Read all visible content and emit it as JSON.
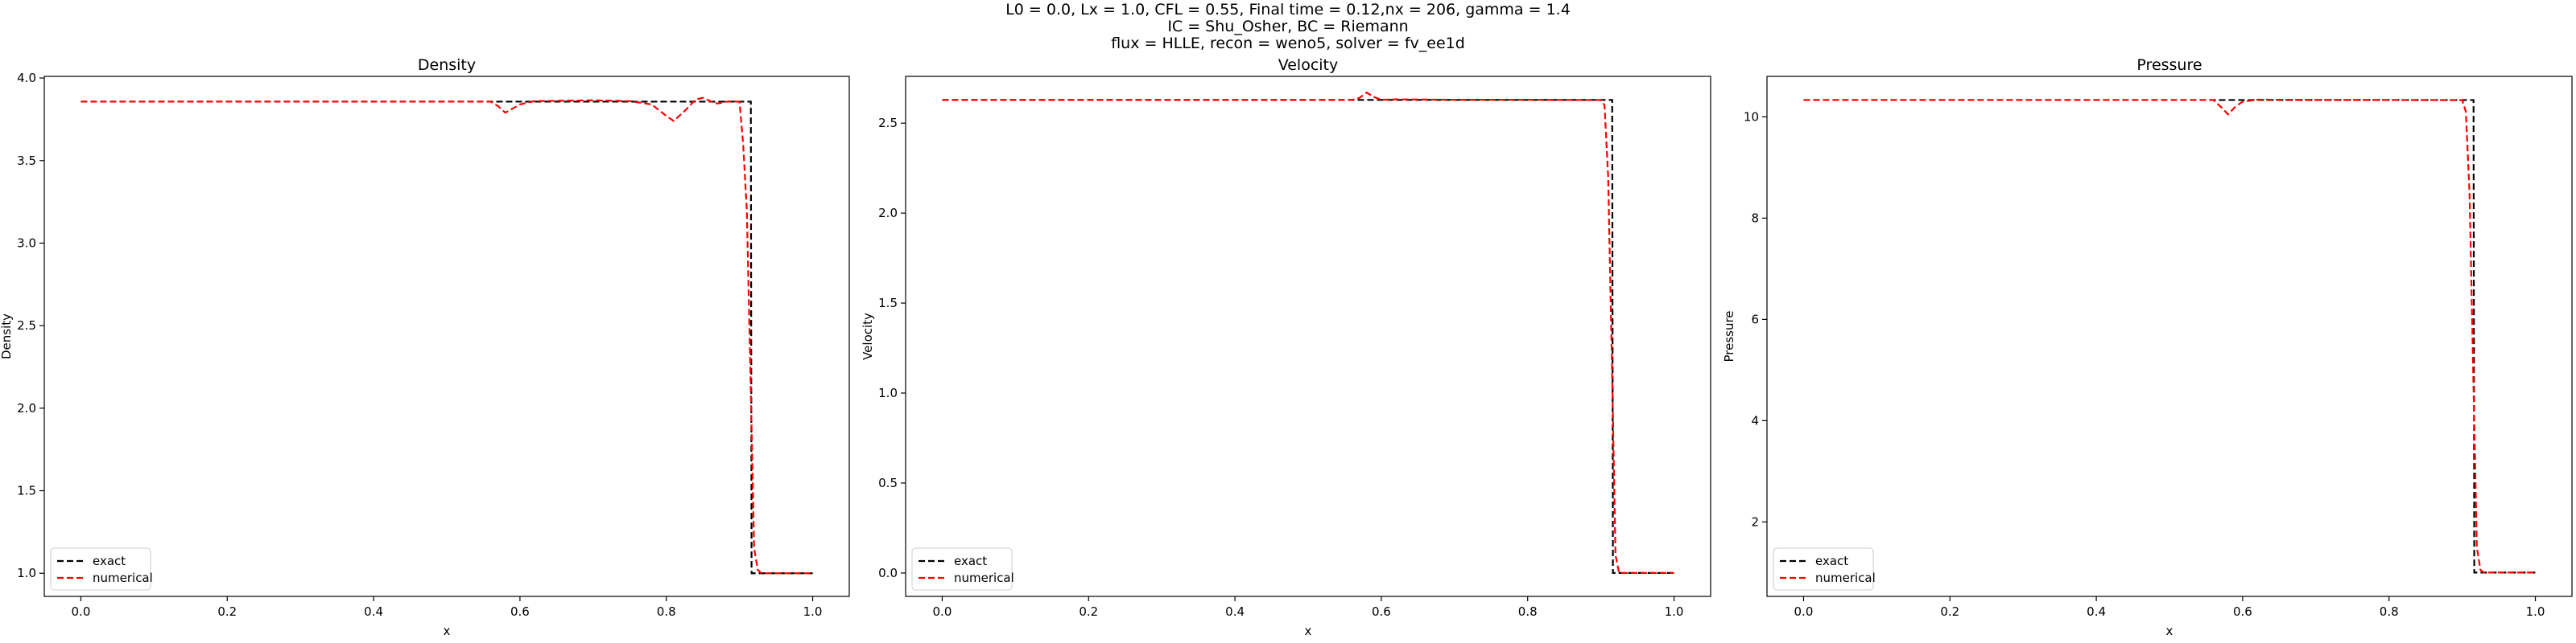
{
  "suptitle": [
    "L0 = 0.0, Lx = 1.0, CFL = 0.55, Final time = 0.12,nx = 206, gamma = 1.4",
    "IC = Shu_Osher, BC = Riemann",
    "flux = HLLE, recon = weno5, solver = fv_ee1d"
  ],
  "colors": {
    "exact": "#000000",
    "numerical": "#ff0000",
    "axes": "#000000",
    "legend_border": "#cccccc"
  },
  "chart_data": [
    {
      "type": "line",
      "title": "Density",
      "xlabel": "x",
      "ylabel": "Density",
      "xlim": [
        -0.05,
        1.05
      ],
      "ylim": [
        0.86,
        4.01
      ],
      "xticks": [
        0.0,
        0.2,
        0.4,
        0.6,
        0.8,
        1.0
      ],
      "xtick_labels": [
        "0.0",
        "0.2",
        "0.4",
        "0.6",
        "0.8",
        "1.0"
      ],
      "yticks": [
        1.0,
        1.5,
        2.0,
        2.5,
        3.0,
        3.5,
        4.0
      ],
      "ytick_labels": [
        "1.0",
        "1.5",
        "2.0",
        "2.5",
        "3.0",
        "3.5",
        "4.0"
      ],
      "grid": false,
      "legend": "lower-left",
      "series": [
        {
          "name": "exact",
          "style": "dashed",
          "color": "#000000",
          "x": [
            0.0,
            0.57,
            0.575,
            0.6,
            0.7,
            0.8,
            0.9,
            0.9155,
            0.9165,
            0.925,
            1.0
          ],
          "y": [
            3.857,
            3.857,
            3.857,
            3.857,
            3.857,
            3.857,
            3.857,
            3.857,
            1.0,
            1.0,
            1.0
          ]
        },
        {
          "name": "numerical",
          "style": "dashed",
          "color": "#ff0000",
          "x": [
            0.0,
            0.56,
            0.57,
            0.58,
            0.6,
            0.62,
            0.65,
            0.7,
            0.75,
            0.78,
            0.8,
            0.81,
            0.825,
            0.84,
            0.85,
            0.86,
            0.87,
            0.88,
            0.89,
            0.9,
            0.905,
            0.91,
            0.915,
            0.92,
            0.925,
            0.93,
            0.94,
            1.0
          ],
          "y": [
            3.857,
            3.857,
            3.83,
            3.79,
            3.84,
            3.86,
            3.862,
            3.865,
            3.86,
            3.84,
            3.77,
            3.74,
            3.8,
            3.87,
            3.88,
            3.86,
            3.845,
            3.855,
            3.86,
            3.855,
            3.6,
            3.2,
            2.2,
            1.15,
            1.02,
            1.0,
            1.0,
            1.0
          ]
        }
      ]
    },
    {
      "type": "line",
      "title": "Velocity",
      "xlabel": "x",
      "ylabel": "Velocity",
      "xlim": [
        -0.05,
        1.05
      ],
      "ylim": [
        -0.13,
        2.76
      ],
      "xticks": [
        0.0,
        0.2,
        0.4,
        0.6,
        0.8,
        1.0
      ],
      "xtick_labels": [
        "0.0",
        "0.2",
        "0.4",
        "0.6",
        "0.8",
        "1.0"
      ],
      "yticks": [
        0.0,
        0.5,
        1.0,
        1.5,
        2.0,
        2.5
      ],
      "ytick_labels": [
        "0.0",
        "0.5",
        "1.0",
        "1.5",
        "2.0",
        "2.5"
      ],
      "grid": false,
      "legend": "lower-left",
      "series": [
        {
          "name": "exact",
          "style": "dashed",
          "color": "#000000",
          "x": [
            0.0,
            0.6,
            0.9,
            0.9155,
            0.9165,
            0.925,
            1.0
          ],
          "y": [
            2.629,
            2.629,
            2.629,
            2.629,
            0.0,
            0.0,
            0.0
          ]
        },
        {
          "name": "numerical",
          "style": "dashed",
          "color": "#ff0000",
          "x": [
            0.0,
            0.56,
            0.57,
            0.58,
            0.59,
            0.6,
            0.62,
            0.7,
            0.8,
            0.9,
            0.905,
            0.91,
            0.915,
            0.92,
            0.925,
            0.93,
            1.0
          ],
          "y": [
            2.629,
            2.629,
            2.64,
            2.67,
            2.645,
            2.63,
            2.632,
            2.63,
            2.63,
            2.628,
            2.6,
            2.2,
            1.2,
            0.1,
            0.0,
            0.0,
            0.0
          ]
        }
      ]
    },
    {
      "type": "line",
      "title": "Pressure",
      "xlabel": "x",
      "ylabel": "Pressure",
      "xlim": [
        -0.05,
        1.05
      ],
      "ylim": [
        0.53,
        10.8
      ],
      "xticks": [
        0.0,
        0.2,
        0.4,
        0.6,
        0.8,
        1.0
      ],
      "xtick_labels": [
        "0.0",
        "0.2",
        "0.4",
        "0.6",
        "0.8",
        "1.0"
      ],
      "yticks": [
        2,
        4,
        6,
        8,
        10
      ],
      "ytick_labels": [
        "2",
        "4",
        "6",
        "8",
        "10"
      ],
      "grid": false,
      "legend": "lower-left",
      "series": [
        {
          "name": "exact",
          "style": "dashed",
          "color": "#000000",
          "x": [
            0.0,
            0.6,
            0.9,
            0.9155,
            0.9165,
            0.925,
            1.0
          ],
          "y": [
            10.333,
            10.333,
            10.333,
            10.333,
            1.0,
            1.0,
            1.0
          ]
        },
        {
          "name": "numerical",
          "style": "dashed",
          "color": "#ff0000",
          "x": [
            0.0,
            0.56,
            0.57,
            0.58,
            0.59,
            0.6,
            0.62,
            0.7,
            0.8,
            0.9,
            0.905,
            0.91,
            0.915,
            0.92,
            0.925,
            0.93,
            1.0
          ],
          "y": [
            10.333,
            10.333,
            10.2,
            10.05,
            10.2,
            10.3,
            10.34,
            10.335,
            10.333,
            10.33,
            10.1,
            8.5,
            5.0,
            1.5,
            1.05,
            1.0,
            1.0
          ]
        }
      ]
    }
  ]
}
